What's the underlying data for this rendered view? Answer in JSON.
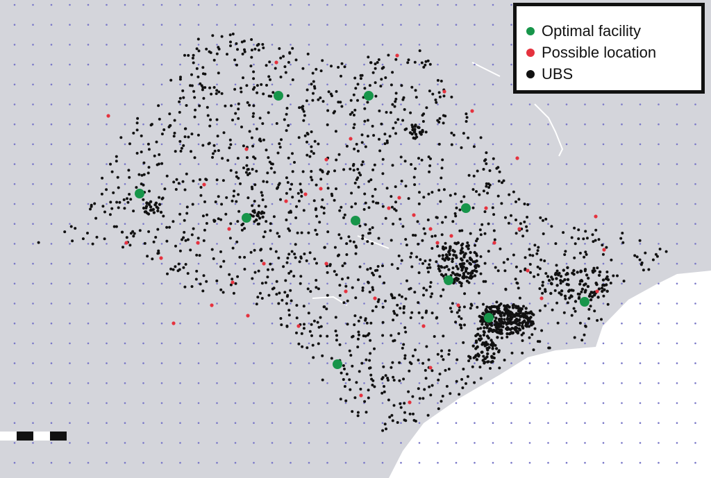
{
  "colors": {
    "background": "#d4d5db",
    "ocean": "#ffffff",
    "grid_dot": "#7a78c8",
    "optimal": "#17954a",
    "possible": "#e5323e",
    "ubs": "#111111"
  },
  "legend": {
    "items": [
      {
        "label": "Optimal facility",
        "color": "#17954a"
      },
      {
        "label": "Possible location",
        "color": "#e5323e"
      },
      {
        "label": "UBS",
        "color": "#111111"
      }
    ]
  }
}
